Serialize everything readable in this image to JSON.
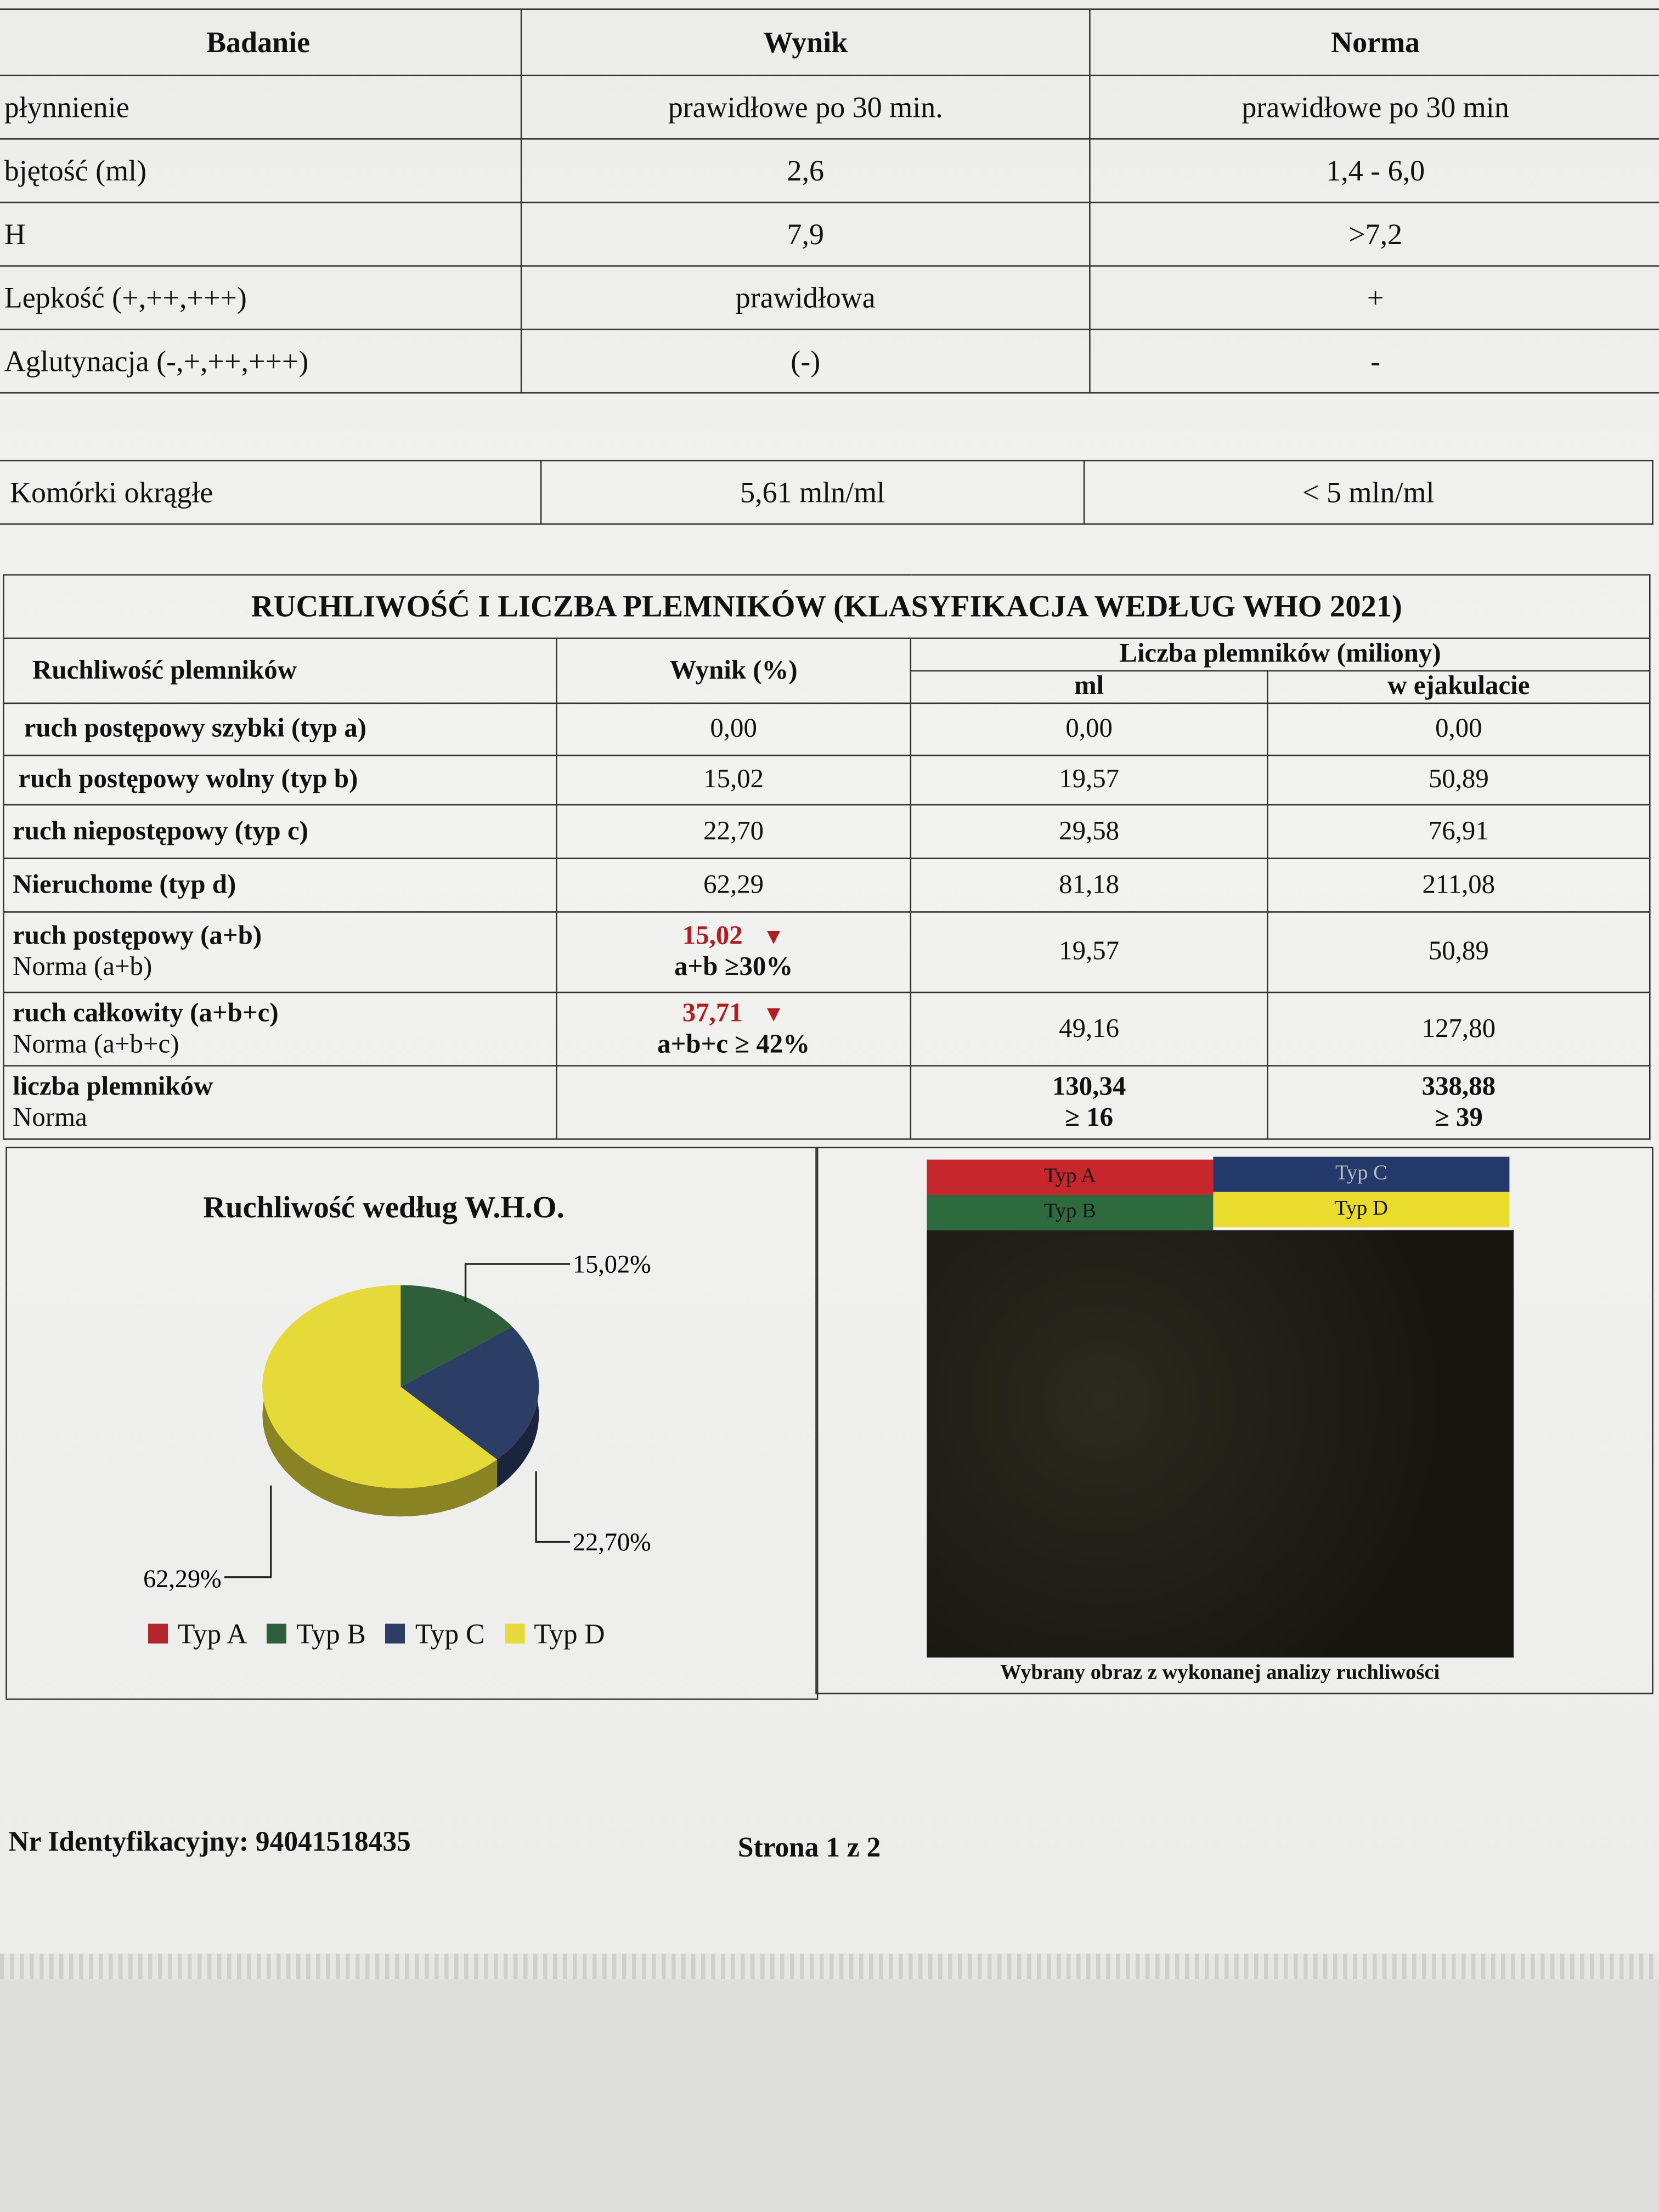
{
  "basic_table": {
    "headers": [
      "Badanie",
      "Wynik",
      "Norma"
    ],
    "rows": [
      [
        "płynnienie",
        "prawidłowe po 30 min.",
        "prawidłowe po 30 min"
      ],
      [
        "bjętość (ml)",
        "2,6",
        "1,4 - 6,0"
      ],
      [
        "H",
        "7,9",
        ">7,2"
      ],
      [
        "Lepkość (+,++,+++)",
        "prawidłowa",
        "+"
      ],
      [
        "Aglutynacja (-,+,++,+++)",
        "(-)",
        "-"
      ]
    ]
  },
  "round_cells": {
    "label": "Komórki okrągłe",
    "value": "5,61 mln/ml",
    "norm": "< 5 mln/ml"
  },
  "motility": {
    "title": "RUCHLIWOŚĆ I LICZBA PLEMNIKÓW (KLASYFIKACJA WEDŁUG WHO 2021)",
    "col_motility": "Ruchliwość plemników",
    "col_result": "Wynik (%)",
    "col_count": "Liczba plemników (miliony)",
    "col_ml": "ml",
    "col_ejac": "w ejakulacie",
    "rows": [
      [
        "ruch postępowy szybki (typ a)",
        "0,00",
        "0,00",
        "0,00"
      ],
      [
        "ruch postępowy wolny (typ b)",
        "15,02",
        "19,57",
        "50,89"
      ],
      [
        "ruch niepostępowy (typ c)",
        "22,70",
        "29,58",
        "76,91"
      ],
      [
        "Nieruchome (typ d)",
        "62,29",
        "81,18",
        "211,08"
      ]
    ],
    "progressive": {
      "label": "ruch postępowy (a+b)",
      "norm_label": "Norma (a+b)",
      "value": "15,02",
      "norm": "a+b ≥30%",
      "ml": "19,57",
      "ejac": "50,89"
    },
    "total": {
      "label": "ruch całkowity (a+b+c)",
      "norm_label": "Norma (a+b+c)",
      "value": "37,71",
      "norm": "a+b+c ≥ 42%",
      "ml": "49,16",
      "ejac": "127,80"
    },
    "count": {
      "label": "liczba plemników",
      "norm_label": "Norma",
      "ml": "130,34",
      "ml_norm": "≥ 16",
      "ejac": "338,88",
      "ejac_norm": "≥ 39"
    },
    "flag_icon": "down-triangle",
    "flag_color": "#b01e24"
  },
  "chart_data": {
    "type": "pie",
    "title": "Ruchliwość według W.H.O.",
    "categories": [
      "Typ A",
      "Typ B",
      "Typ C",
      "Typ D"
    ],
    "values": [
      0,
      15.02,
      22.7,
      62.29
    ],
    "labels": [
      "15,02%",
      "22,70%",
      "62,29%"
    ],
    "colors": [
      "#b3262c",
      "#2f5f3a",
      "#2c3e66",
      "#e6da3a"
    ],
    "legend": "bottom"
  },
  "image_panel": {
    "legend": [
      {
        "label": "Typ A",
        "color": "#c8262d"
      },
      {
        "label": "Typ C",
        "color": "#243a6b"
      },
      {
        "label": "Typ B",
        "color": "#2d6b3f"
      },
      {
        "label": "Typ D",
        "color": "#eadc2e"
      }
    ],
    "caption": "Wybrany obraz z wykonanej analizy ruchliwości"
  },
  "footer": {
    "id": "Nr Identyfikacyjny: 94041518435",
    "page": "Strona 1 z 2"
  }
}
